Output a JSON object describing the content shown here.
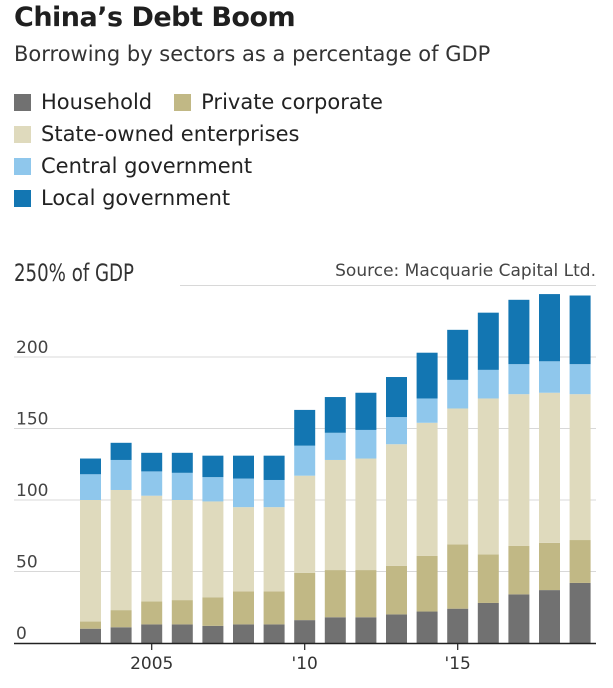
{
  "header": {
    "title": "China’s Debt Boom",
    "subtitle": "Borrowing by sectors as a percentage of GDP",
    "source": "Source: Macquarie Capital Ltd."
  },
  "chart_data": {
    "type": "bar",
    "stacked": true,
    "title": "China’s Debt Boom",
    "subtitle": "Borrowing by sectors as a percentage of GDP",
    "ylabel": "250% of GDP",
    "ylim": [
      0,
      250
    ],
    "yticks": [
      0,
      50,
      100,
      150,
      200
    ],
    "ytick_labels": [
      "0",
      "50",
      "100",
      "150",
      "200"
    ],
    "x_tick_labels": [
      {
        "year": 2005,
        "label": "2005"
      },
      {
        "year": 2010,
        "label": "'10"
      },
      {
        "year": 2015,
        "label": "'15"
      }
    ],
    "categories": [
      2003,
      2004,
      2005,
      2006,
      2007,
      2008,
      2009,
      2010,
      2011,
      2012,
      2013,
      2014,
      2015,
      2016,
      2017,
      2018,
      2019
    ],
    "grid": true,
    "legend_position": "top-left",
    "series": [
      {
        "name": "Household",
        "color": "#717171",
        "values": [
          10,
          11,
          13,
          13,
          12,
          13,
          13,
          16,
          18,
          18,
          20,
          22,
          24,
          28,
          34,
          37,
          42
        ]
      },
      {
        "name": "Private corporate",
        "color": "#c1b885",
        "values": [
          5,
          12,
          16,
          17,
          20,
          23,
          23,
          33,
          33,
          33,
          34,
          39,
          45,
          34,
          34,
          33,
          30
        ]
      },
      {
        "name": "State-owned enterprises",
        "color": "#dfdabd",
        "values": [
          85,
          84,
          74,
          70,
          67,
          59,
          59,
          68,
          77,
          78,
          85,
          93,
          95,
          109,
          106,
          105,
          102
        ]
      },
      {
        "name": "Central government",
        "color": "#8fc7ec",
        "values": [
          18,
          21,
          17,
          19,
          17,
          20,
          19,
          21,
          19,
          20,
          19,
          17,
          20,
          20,
          21,
          22,
          21
        ]
      },
      {
        "name": "Local government",
        "color": "#1376b2",
        "values": [
          11,
          12,
          13,
          14,
          15,
          16,
          17,
          25,
          25,
          26,
          28,
          32,
          35,
          40,
          45,
          47,
          48
        ]
      }
    ]
  }
}
